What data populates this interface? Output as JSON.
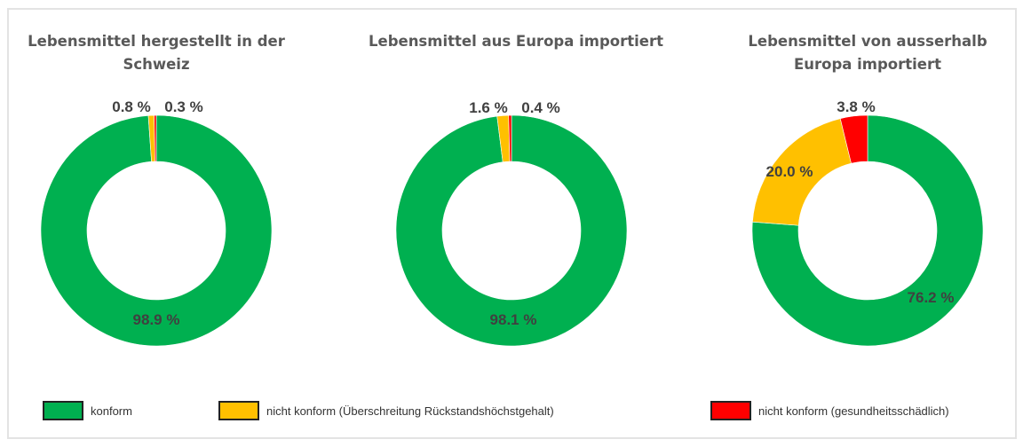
{
  "chart_data": [
    {
      "type": "pie",
      "variant": "donut",
      "title": "Lebensmittel hergestellt in der Schweiz",
      "categories": [
        "konform",
        "nicht konform (Überschreitung Rückstandshöchstgehalt)",
        "nicht konform (gesundheitsschädlich)"
      ],
      "values": [
        98.9,
        0.8,
        0.3
      ],
      "labels": [
        "98.9 %",
        "0.8 %",
        "0.3 %"
      ]
    },
    {
      "type": "pie",
      "variant": "donut",
      "title": "Lebensmittel aus Europa importiert",
      "categories": [
        "konform",
        "nicht konform (Überschreitung Rückstandshöchstgehalt)",
        "nicht konform (gesundheitsschädlich)"
      ],
      "values": [
        98.1,
        1.6,
        0.4
      ],
      "labels": [
        "98.1 %",
        "1.6 %",
        "0.4 %"
      ]
    },
    {
      "type": "pie",
      "variant": "donut",
      "title": "Lebensmittel von ausserhalb Europa importiert",
      "categories": [
        "konform",
        "nicht konform (Überschreitung Rückstandshöchstgehalt)",
        "nicht konform (gesundheitsschädlich)"
      ],
      "values": [
        76.2,
        20.0,
        3.8
      ],
      "labels": [
        "76.2 %",
        "20.0 %",
        "3.8 %"
      ]
    }
  ],
  "colors": [
    "#00b050",
    "#ffc000",
    "#ff0000"
  ],
  "legend": {
    "placement": "bottom",
    "items": [
      "konform",
      "nicht konform (Überschreitung Rückstandshöchstgehalt)",
      "nicht konform (gesundheitsschädlich)"
    ]
  }
}
